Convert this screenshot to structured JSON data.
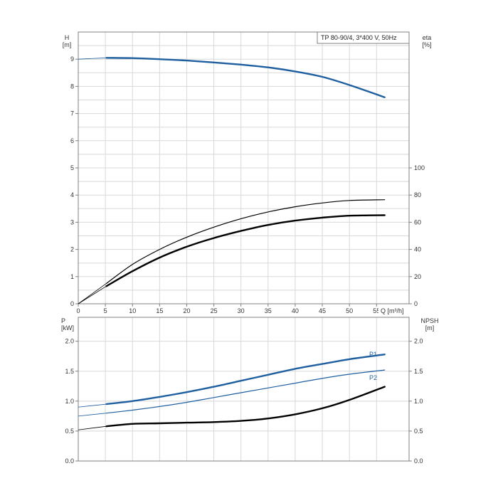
{
  "chart_data": [
    {
      "type": "line",
      "title": "TP 80-90/4, 3*400 V, 50Hz",
      "xlabel": "Q [m³/h]",
      "ylabel_left_line1": "H",
      "ylabel_left_line2": "[m]",
      "ylabel_right_line1": "eta",
      "ylabel_right_line2": "[%]",
      "xlim": [
        0,
        61
      ],
      "x_ticks": [
        0,
        5,
        10,
        15,
        20,
        25,
        30,
        35,
        40,
        45,
        50,
        55
      ],
      "ylim_left": [
        0,
        10
      ],
      "y_ticks_left": [
        0,
        1,
        2,
        3,
        4,
        5,
        6,
        7,
        8,
        9
      ],
      "ylim_right": [
        0,
        200
      ],
      "y_ticks_right": [
        0,
        20,
        40,
        60,
        80,
        100
      ],
      "grid": true,
      "series": [
        {
          "axis": "left",
          "color": "#1f5f9f",
          "thin_lead_in": [
            [
              0,
              9.0
            ],
            [
              5.2,
              9.05
            ]
          ],
          "points": [
            [
              5.2,
              9.05
            ],
            [
              10,
              9.04
            ],
            [
              15,
              9.0
            ],
            [
              20,
              8.95
            ],
            [
              25,
              8.88
            ],
            [
              30,
              8.8
            ],
            [
              35,
              8.7
            ],
            [
              40,
              8.55
            ],
            [
              45,
              8.35
            ],
            [
              50,
              8.05
            ],
            [
              56.5,
              7.6
            ]
          ]
        },
        {
          "axis": "left",
          "color": "#000000",
          "stroke": "thin",
          "thin_lead_in": [
            [
              0,
              0.0
            ],
            [
              5.2,
              0.75
            ]
          ],
          "points": [
            [
              5.2,
              0.75
            ],
            [
              10,
              1.45
            ],
            [
              15,
              2.0
            ],
            [
              20,
              2.45
            ],
            [
              25,
              2.82
            ],
            [
              30,
              3.13
            ],
            [
              35,
              3.38
            ],
            [
              40,
              3.57
            ],
            [
              45,
              3.71
            ],
            [
              50,
              3.8
            ],
            [
              56.5,
              3.83
            ]
          ]
        },
        {
          "axis": "left",
          "color": "#000000",
          "stroke": "thick",
          "thin_lead_in": [
            [
              0,
              0.0
            ],
            [
              5.2,
              0.65
            ]
          ],
          "points": [
            [
              5.2,
              0.65
            ],
            [
              10,
              1.2
            ],
            [
              15,
              1.7
            ],
            [
              20,
              2.1
            ],
            [
              25,
              2.42
            ],
            [
              30,
              2.68
            ],
            [
              35,
              2.9
            ],
            [
              40,
              3.06
            ],
            [
              45,
              3.17
            ],
            [
              50,
              3.24
            ],
            [
              56.5,
              3.26
            ]
          ]
        }
      ]
    },
    {
      "type": "line",
      "ylabel_left_line1": "P",
      "ylabel_left_line2": "[kW]",
      "ylabel_right_line1": "NPSH",
      "ylabel_right_line2": "[m]",
      "xlim": [
        0,
        61
      ],
      "x_ticks": [
        0,
        5,
        10,
        15,
        20,
        25,
        30,
        35,
        40,
        45,
        50,
        55
      ],
      "ylim_left": [
        0,
        2.4
      ],
      "y_ticks_left": [
        "0.0",
        "0.5",
        "1.0",
        "1.5",
        "2.0"
      ],
      "ylim_right": [
        0,
        2.4
      ],
      "y_ticks_right": [
        "0.0",
        "0.5",
        "1.0",
        "1.5",
        "2.0"
      ],
      "grid": true,
      "series": [
        {
          "name": "P1",
          "axis": "left",
          "color": "#1f5f9f",
          "stroke": "thick",
          "thin_lead_in": [
            [
              0,
              0.9
            ],
            [
              5.2,
              0.95
            ]
          ],
          "points": [
            [
              5.2,
              0.95
            ],
            [
              10,
              1.0
            ],
            [
              15,
              1.07
            ],
            [
              20,
              1.15
            ],
            [
              25,
              1.24
            ],
            [
              30,
              1.34
            ],
            [
              35,
              1.44
            ],
            [
              40,
              1.54
            ],
            [
              45,
              1.62
            ],
            [
              50,
              1.7
            ],
            [
              56.5,
              1.78
            ]
          ]
        },
        {
          "name": "P2",
          "axis": "left",
          "color": "#1f5f9f",
          "stroke": "thin",
          "thin_lead_in": [
            [
              0,
              0.75
            ],
            [
              5.2,
              0.8
            ]
          ],
          "points": [
            [
              5.2,
              0.8
            ],
            [
              10,
              0.85
            ],
            [
              15,
              0.91
            ],
            [
              20,
              0.98
            ],
            [
              25,
              1.06
            ],
            [
              30,
              1.14
            ],
            [
              35,
              1.22
            ],
            [
              40,
              1.3
            ],
            [
              45,
              1.38
            ],
            [
              50,
              1.45
            ],
            [
              56.5,
              1.52
            ]
          ]
        },
        {
          "axis": "right",
          "color": "#000000",
          "stroke": "thick",
          "thin_lead_in": [
            [
              0,
              0.52
            ],
            [
              5.2,
              0.58
            ]
          ],
          "points": [
            [
              5.2,
              0.58
            ],
            [
              10,
              0.62
            ],
            [
              15,
              0.63
            ],
            [
              20,
              0.64
            ],
            [
              25,
              0.65
            ],
            [
              30,
              0.67
            ],
            [
              35,
              0.71
            ],
            [
              40,
              0.78
            ],
            [
              45,
              0.88
            ],
            [
              50,
              1.02
            ],
            [
              56.5,
              1.24
            ]
          ]
        }
      ]
    }
  ]
}
